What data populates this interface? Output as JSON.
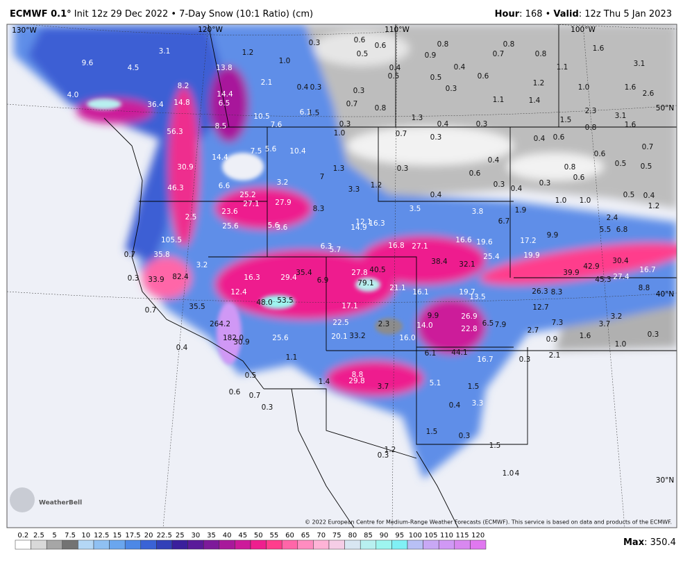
{
  "header": {
    "model": "ECMWF 0.1°",
    "subtitle": "Init 12z 29 Dec 2022 • 7-Day Snow (10:1 Ratio) (cm)",
    "hour_label": "Hour",
    "hour_text": ": 168 • ",
    "valid_label": "Valid",
    "valid_text": ": 12z Thu 5 Jan 2023"
  },
  "map": {
    "graticule": [
      "130°W",
      "120°W",
      "110°W",
      "100°W",
      "50°N",
      "40°N",
      "30°N"
    ],
    "labels": [
      "0.3",
      "0.6",
      "0.6",
      "0.8",
      "0.8",
      "1.6",
      "0.5",
      "0.9",
      "0.7",
      "0.8",
      "1.2",
      "1.0",
      "0.4",
      "0.5",
      "0.4",
      "0.5",
      "0.6",
      "1.1",
      "3.1",
      "0.4",
      "0.3",
      "0.3",
      "0.3",
      "1.2",
      "1.0",
      "1.6",
      "2.6",
      "0.7",
      "0.8",
      "1.1",
      "1.4",
      "2.3",
      "3.1",
      "1.5",
      "1.3",
      "0.4",
      "0.3",
      "1.5",
      "0.8",
      "1.6",
      "0.3",
      "1.0",
      "0.7",
      "0.3",
      "0.4",
      "0.6",
      "0.6",
      "0.7",
      "0.4",
      "0.5",
      "0.5",
      "1.3",
      "0.3",
      "0.6",
      "0.8",
      "0.6",
      "0.3",
      "0.4",
      "0.3",
      "7",
      "3.3",
      "1.2",
      "0.4",
      "1.0",
      "1.0",
      "0.5",
      "0.4",
      "1.2",
      "1.9",
      "2.4",
      "5.5",
      "6.8",
      "8.3",
      "6.7",
      "9.9",
      "0.7",
      "0.3",
      "0.7",
      "0.4",
      "0.5",
      "0.6",
      "0.7",
      "0.3",
      "1.4",
      "3.7",
      "1.5",
      "0.4",
      "1.5",
      "0.3",
      "1.5",
      "0.3",
      "1.2",
      "1.0",
      "4",
      "0.3",
      "2.1",
      "0.9",
      "1.6",
      "1.0",
      "0.3",
      "7.3",
      "2.7",
      "3.7",
      "3.2",
      "12.7",
      "26.3",
      "8.3",
      "6.5",
      "7.9",
      "1.1",
      "3.1",
      "9.6",
      "4.5",
      "13.8",
      "8.2",
      "14.4",
      "6.5",
      "2.1",
      "36.4",
      "14.8",
      "4.0",
      "10.5",
      "6.1",
      "8.5",
      "7.6",
      "56.3",
      "7.5",
      "5.6",
      "10.4",
      "14.4",
      "30.9",
      "46.3",
      "6.6",
      "3.2",
      "25.2",
      "27.1",
      "27.9",
      "23.6",
      "2.5",
      "25.6",
      "5.6",
      "3.6",
      "12.1",
      "16.3",
      "14.9",
      "3.5",
      "3.8",
      "105.5",
      "6.3",
      "5.7",
      "16.8",
      "27.1",
      "16.6",
      "19.6",
      "17.2",
      "25.4",
      "19.9",
      "35.8",
      "3.2",
      "38.4",
      "32.1",
      "40.5",
      "27.8",
      "39.9",
      "42.9",
      "30.4",
      "16.7",
      "45.3",
      "27.4",
      "8.8",
      "33.9",
      "82.4",
      "16.3",
      "29.4",
      "35.4",
      "6.9",
      "79.1",
      "21.1",
      "16.1",
      "19.7",
      "13.5",
      "12.4",
      "48.0",
      "53.5",
      "17.1",
      "35.5",
      "9.9",
      "26.9",
      "264.2",
      "22.5",
      "2.3",
      "14.0",
      "22.8",
      "182.0",
      "30.9",
      "25.6",
      "20.1",
      "33.2",
      "16.0",
      "6.1",
      "44.1",
      "16.7",
      "8.8",
      "29.8",
      "5.1",
      "3.3"
    ],
    "logo": "WeatherBell",
    "credit": "© 2022 European Centre for Medium-Range Weather Forecasts (ECMWF). This service is based on data and products of the ECMWF."
  },
  "legend": {
    "ticks": [
      "0.2",
      "2.5",
      "5",
      "7.5",
      "10",
      "12.5",
      "15",
      "17.5",
      "20",
      "22.5",
      "25",
      "30",
      "35",
      "40",
      "45",
      "50",
      "55",
      "60",
      "65",
      "70",
      "75",
      "80",
      "85",
      "90",
      "95",
      "100",
      "105",
      "110",
      "115",
      "120"
    ],
    "colors": [
      "#ffffff",
      "#d9d9d9",
      "#a6a6a6",
      "#737373",
      "#b4d7f5",
      "#8fc0f2",
      "#6aa6ee",
      "#4d88e6",
      "#3a63d6",
      "#3240b8",
      "#3a1f9c",
      "#5a1a9a",
      "#7d1a9a",
      "#a8199b",
      "#cc1a9a",
      "#ee1f8e",
      "#ff3d8c",
      "#ff66a8",
      "#ff8cc0",
      "#ffb3d6",
      "#f5cde6",
      "#d8e6f2",
      "#b8f0f0",
      "#9ef5f0",
      "#80f0f5",
      "#b8c0f5",
      "#c8a8f5",
      "#d098f5",
      "#d888f0",
      "#e078f0"
    ]
  },
  "max": {
    "label": "Max",
    "value": "350.4"
  }
}
